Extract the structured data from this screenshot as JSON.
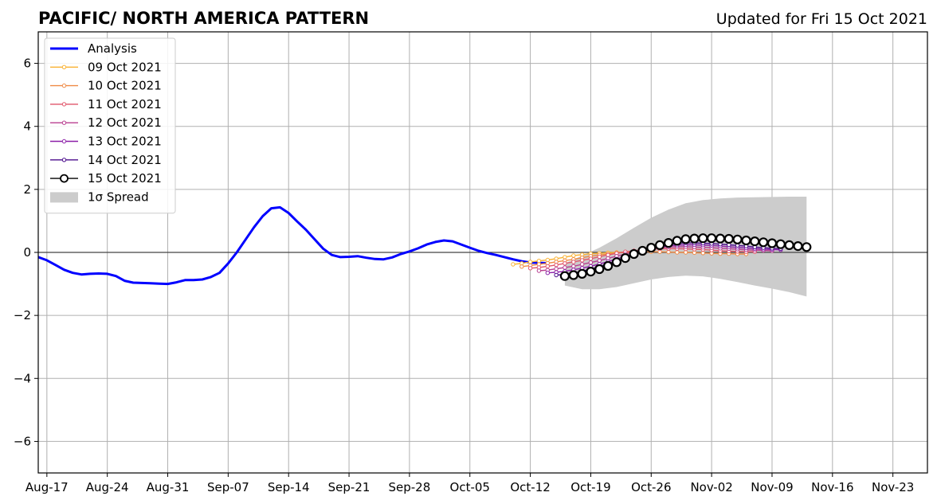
{
  "title": "PACIFIC/ NORTH AMERICA PATTERN",
  "subtitle": "Updated for Fri 15 Oct 2021",
  "chart_data": {
    "type": "line",
    "xlim": [
      "2021-08-16",
      "2021-11-27"
    ],
    "ylim": [
      -7,
      7
    ],
    "grid": true,
    "legend_position": "top-left",
    "x_tick_labels": [
      "Aug-17",
      "Aug-24",
      "Aug-31",
      "Sep-07",
      "Sep-14",
      "Sep-21",
      "Sep-28",
      "Oct-05",
      "Oct-12",
      "Oct-19",
      "Oct-26",
      "Nov-02",
      "Nov-09",
      "Nov-16",
      "Nov-23"
    ],
    "x_tick_dates": [
      "2021-08-17",
      "2021-08-24",
      "2021-08-31",
      "2021-09-07",
      "2021-09-14",
      "2021-09-21",
      "2021-09-28",
      "2021-10-05",
      "2021-10-12",
      "2021-10-19",
      "2021-10-26",
      "2021-11-02",
      "2021-11-09",
      "2021-11-16",
      "2021-11-23"
    ],
    "y_ticks": [
      -6,
      -4,
      -2,
      0,
      2,
      4,
      6
    ],
    "y_tick_labels": [
      "−6",
      "−4",
      "−2",
      "0",
      "2",
      "4",
      "6"
    ],
    "analysis": {
      "name": "Analysis",
      "color": "#0000ff",
      "x": [
        "2021-08-16",
        "2021-08-17",
        "2021-08-18",
        "2021-08-19",
        "2021-08-20",
        "2021-08-21",
        "2021-08-22",
        "2021-08-23",
        "2021-08-24",
        "2021-08-25",
        "2021-08-26",
        "2021-08-27",
        "2021-08-28",
        "2021-08-29",
        "2021-08-30",
        "2021-08-31",
        "2021-09-01",
        "2021-09-02",
        "2021-09-03",
        "2021-09-04",
        "2021-09-05",
        "2021-09-06",
        "2021-09-07",
        "2021-09-08",
        "2021-09-09",
        "2021-09-10",
        "2021-09-11",
        "2021-09-12",
        "2021-09-13",
        "2021-09-14",
        "2021-09-15",
        "2021-09-16",
        "2021-09-17",
        "2021-09-18",
        "2021-09-19",
        "2021-09-20",
        "2021-09-21",
        "2021-09-22",
        "2021-09-23",
        "2021-09-24",
        "2021-09-25",
        "2021-09-26",
        "2021-09-27",
        "2021-09-28",
        "2021-09-29",
        "2021-09-30",
        "2021-10-01",
        "2021-10-02",
        "2021-10-03",
        "2021-10-04",
        "2021-10-05",
        "2021-10-06",
        "2021-10-07",
        "2021-10-08",
        "2021-10-09",
        "2021-10-10",
        "2021-10-11",
        "2021-10-12",
        "2021-10-13",
        "2021-10-14"
      ],
      "y": [
        -0.15,
        -0.25,
        -0.4,
        -0.55,
        -0.65,
        -0.7,
        -0.68,
        -0.67,
        -0.68,
        -0.75,
        -0.9,
        -0.96,
        -0.97,
        -0.98,
        -0.99,
        -1.0,
        -0.95,
        -0.88,
        -0.88,
        -0.86,
        -0.78,
        -0.65,
        -0.35,
        0.0,
        0.4,
        0.8,
        1.15,
        1.4,
        1.43,
        1.25,
        0.98,
        0.72,
        0.42,
        0.12,
        -0.08,
        -0.15,
        -0.14,
        -0.12,
        -0.17,
        -0.21,
        -0.22,
        -0.16,
        -0.05,
        0.03,
        0.13,
        0.25,
        0.33,
        0.38,
        0.35,
        0.25,
        0.15,
        0.05,
        -0.02,
        -0.08,
        -0.15,
        -0.22,
        -0.28,
        -0.32,
        -0.33,
        -0.34
      ]
    },
    "forecasts": [
      {
        "name": "09 Oct 2021",
        "color": "#f9b233",
        "marker_size": 2.2,
        "start": "2021-10-10",
        "days": 14,
        "y": [
          -0.38,
          -0.35,
          -0.3,
          -0.27,
          -0.24,
          -0.2,
          -0.15,
          -0.1,
          -0.07,
          -0.04,
          -0.03,
          -0.01,
          0.0,
          0.0
        ]
      },
      {
        "name": "10 Oct 2021",
        "color": "#f08a45",
        "marker_size": 2.2,
        "start": "2021-10-11",
        "days": 27,
        "y": [
          -0.45,
          -0.42,
          -0.38,
          -0.34,
          -0.3,
          -0.26,
          -0.22,
          -0.17,
          -0.12,
          -0.08,
          -0.05,
          -0.02,
          0.0,
          0.01,
          0.02,
          0.02,
          0.02,
          0.01,
          0.0,
          0.0,
          -0.01,
          -0.02,
          -0.03,
          -0.04,
          -0.04,
          -0.05,
          -0.05
        ]
      },
      {
        "name": "11 Oct 2021",
        "color": "#e1566b",
        "marker_size": 2.2,
        "start": "2021-10-12",
        "days": 27,
        "y": [
          -0.5,
          -0.48,
          -0.44,
          -0.4,
          -0.35,
          -0.3,
          -0.25,
          -0.2,
          -0.14,
          -0.08,
          -0.03,
          0.02,
          0.05,
          0.08,
          0.1,
          0.11,
          0.12,
          0.12,
          0.11,
          0.1,
          0.09,
          0.07,
          0.05,
          0.04,
          0.03,
          0.02,
          0.02
        ]
      },
      {
        "name": "12 Oct 2021",
        "color": "#b83d8f",
        "marker_size": 2.2,
        "start": "2021-10-13",
        "days": 28,
        "y": [
          -0.58,
          -0.56,
          -0.52,
          -0.48,
          -0.44,
          -0.38,
          -0.32,
          -0.26,
          -0.19,
          -0.12,
          -0.05,
          0.02,
          0.08,
          0.12,
          0.15,
          0.17,
          0.18,
          0.18,
          0.17,
          0.16,
          0.15,
          0.13,
          0.12,
          0.1,
          0.08,
          0.07,
          0.06,
          0.05
        ]
      },
      {
        "name": "13 Oct 2021",
        "color": "#8b1fa8",
        "marker_size": 2.2,
        "start": "2021-10-14",
        "days": 28,
        "y": [
          -0.65,
          -0.63,
          -0.6,
          -0.55,
          -0.5,
          -0.44,
          -0.37,
          -0.29,
          -0.21,
          -0.13,
          -0.04,
          0.05,
          0.12,
          0.17,
          0.21,
          0.23,
          0.24,
          0.24,
          0.23,
          0.22,
          0.2,
          0.18,
          0.16,
          0.14,
          0.12,
          0.1,
          0.09,
          0.08
        ]
      },
      {
        "name": "14 Oct 2021",
        "color": "#4b0c8c",
        "marker_size": 2.2,
        "start": "2021-10-15",
        "days": 27,
        "y": [
          -0.72,
          -0.7,
          -0.66,
          -0.6,
          -0.53,
          -0.45,
          -0.36,
          -0.26,
          -0.16,
          -0.06,
          0.04,
          0.13,
          0.2,
          0.25,
          0.28,
          0.3,
          0.3,
          0.29,
          0.28,
          0.26,
          0.24,
          0.22,
          0.2,
          0.17,
          0.15,
          0.13,
          0.12
        ]
      },
      {
        "name": "15 Oct 2021",
        "color": "#000000",
        "marker_fill": "#ffffff",
        "marker_size": 5,
        "start": "2021-10-16",
        "days": 29,
        "y": [
          -0.75,
          -0.72,
          -0.68,
          -0.61,
          -0.53,
          -0.43,
          -0.31,
          -0.18,
          -0.05,
          0.05,
          0.15,
          0.23,
          0.3,
          0.37,
          0.42,
          0.44,
          0.45,
          0.45,
          0.44,
          0.43,
          0.41,
          0.38,
          0.35,
          0.32,
          0.29,
          0.26,
          0.23,
          0.2,
          0.17
        ]
      }
    ],
    "spread": {
      "name": "1σ Spread",
      "color": "#cccccc",
      "x": [
        "2021-10-16",
        "2021-10-18",
        "2021-10-20",
        "2021-10-22",
        "2021-10-24",
        "2021-10-26",
        "2021-10-28",
        "2021-10-30",
        "2021-11-01",
        "2021-11-03",
        "2021-11-05",
        "2021-11-07",
        "2021-11-09",
        "2021-11-11",
        "2021-11-13"
      ],
      "upper": [
        -0.35,
        -0.1,
        0.15,
        0.45,
        0.78,
        1.1,
        1.36,
        1.56,
        1.66,
        1.71,
        1.74,
        1.75,
        1.76,
        1.77,
        1.77
      ],
      "lower": [
        -1.05,
        -1.17,
        -1.17,
        -1.1,
        -0.98,
        -0.86,
        -0.78,
        -0.74,
        -0.76,
        -0.84,
        -0.94,
        -1.05,
        -1.15,
        -1.26,
        -1.4
      ]
    },
    "legend": [
      {
        "label": "Analysis",
        "kind": "analysis"
      },
      {
        "label": "09 Oct 2021",
        "kind": "forecast",
        "index": 0
      },
      {
        "label": "10 Oct 2021",
        "kind": "forecast",
        "index": 1
      },
      {
        "label": "11 Oct 2021",
        "kind": "forecast",
        "index": 2
      },
      {
        "label": "12 Oct 2021",
        "kind": "forecast",
        "index": 3
      },
      {
        "label": "13 Oct 2021",
        "kind": "forecast",
        "index": 4
      },
      {
        "label": "14 Oct 2021",
        "kind": "forecast",
        "index": 5
      },
      {
        "label": "15 Oct 2021",
        "kind": "forecast",
        "index": 6
      },
      {
        "label": "1σ Spread",
        "kind": "spread"
      }
    ]
  }
}
